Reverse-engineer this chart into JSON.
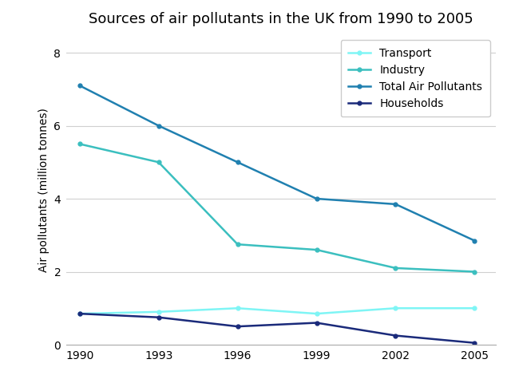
{
  "title": "Sources of air pollutants in the UK from 1990 to 2005",
  "xlabel": "",
  "ylabel": "Air pollutants (million tonnes)",
  "years": [
    1990,
    1993,
    1996,
    1999,
    2002,
    2005
  ],
  "series": [
    {
      "name": "Transport",
      "values": [
        0.85,
        0.9,
        1.0,
        0.85,
        1.0,
        1.0
      ],
      "color": "#7ff5f5",
      "linewidth": 1.8
    },
    {
      "name": "Industry",
      "values": [
        5.5,
        5.0,
        2.75,
        2.6,
        2.1,
        2.0
      ],
      "color": "#3bbfbf",
      "linewidth": 1.8
    },
    {
      "name": "Total Air Pollutants",
      "values": [
        7.1,
        6.0,
        5.0,
        4.0,
        3.85,
        2.85
      ],
      "color": "#2080b0",
      "linewidth": 1.8
    },
    {
      "name": "Households",
      "values": [
        0.85,
        0.75,
        0.5,
        0.6,
        0.25,
        0.05
      ],
      "color": "#1a2a7a",
      "linewidth": 1.8
    }
  ],
  "ylim": [
    0,
    8.5
  ],
  "yticks": [
    0,
    2,
    4,
    6,
    8
  ],
  "xlim": [
    1989.5,
    2005.8
  ],
  "background_color": "#ffffff",
  "grid_color": "#d0d0d0",
  "title_fontsize": 13,
  "tick_fontsize": 10,
  "label_fontsize": 10,
  "legend_fontsize": 10
}
